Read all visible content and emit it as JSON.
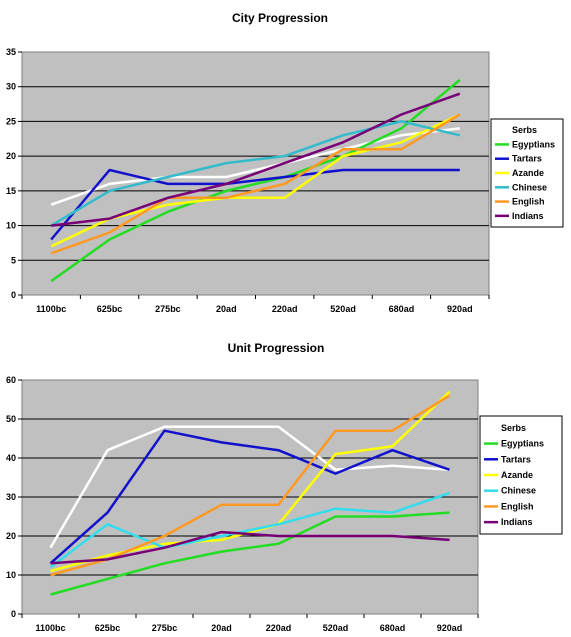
{
  "chart_data": [
    {
      "type": "line",
      "title": "City Progression",
      "categories": [
        "1100bc",
        "625bc",
        "275bc",
        "20ad",
        "220ad",
        "520ad",
        "680ad",
        "920ad"
      ],
      "ylim": [
        0,
        35
      ],
      "yticks": [
        0,
        5,
        10,
        15,
        20,
        25,
        30,
        35
      ],
      "grid": true,
      "legend": "right",
      "series": [
        {
          "name": "Serbs",
          "color": "#ffffff",
          "values": [
            13,
            16,
            17,
            17,
            19,
            21,
            23,
            24
          ]
        },
        {
          "name": "Egyptians",
          "color": "#22dd22",
          "values": [
            2,
            8,
            12,
            15,
            17,
            20,
            24,
            31
          ]
        },
        {
          "name": "Tartars",
          "color": "#1111cc",
          "values": [
            8,
            18,
            16,
            16,
            17,
            18,
            18,
            18
          ]
        },
        {
          "name": "Azande",
          "color": "#ffff00",
          "values": [
            7,
            11,
            13,
            14,
            14,
            20,
            22,
            26
          ]
        },
        {
          "name": "Chinese",
          "color": "#33bbcc",
          "values": [
            10,
            15,
            17,
            19,
            20,
            23,
            25,
            23
          ]
        },
        {
          "name": "English",
          "color": "#ff9922",
          "values": [
            6,
            9,
            14,
            14,
            16,
            21,
            21,
            26
          ]
        },
        {
          "name": "Indians",
          "color": "#770077",
          "values": [
            10,
            11,
            14,
            16,
            19,
            22,
            26,
            29
          ]
        }
      ]
    },
    {
      "type": "line",
      "title": "Unit Progression",
      "categories": [
        "1100bc",
        "625bc",
        "275bc",
        "20ad",
        "220ad",
        "520ad",
        "680ad",
        "920ad"
      ],
      "ylim": [
        0,
        60
      ],
      "yticks": [
        0,
        10,
        20,
        30,
        40,
        50,
        60
      ],
      "grid": true,
      "legend": "right",
      "series": [
        {
          "name": "Serbs",
          "color": "#ffffff",
          "values": [
            17,
            42,
            48,
            48,
            48,
            37,
            38,
            37
          ]
        },
        {
          "name": "Egyptians",
          "color": "#22dd22",
          "values": [
            5,
            9,
            13,
            16,
            18,
            25,
            25,
            26
          ]
        },
        {
          "name": "Tartars",
          "color": "#1111cc",
          "values": [
            13,
            26,
            47,
            44,
            42,
            36,
            42,
            37
          ]
        },
        {
          "name": "Azande",
          "color": "#ffff00",
          "values": [
            11,
            15,
            18,
            19,
            23,
            41,
            43,
            57
          ]
        },
        {
          "name": "Chinese",
          "color": "#33ddee",
          "values": [
            12,
            23,
            17,
            20,
            23,
            27,
            26,
            31
          ]
        },
        {
          "name": "English",
          "color": "#ff9922",
          "values": [
            10,
            14,
            20,
            28,
            28,
            47,
            47,
            56
          ]
        },
        {
          "name": "Indians",
          "color": "#770077",
          "values": [
            13,
            14,
            17,
            21,
            20,
            20,
            20,
            19
          ]
        }
      ]
    }
  ]
}
